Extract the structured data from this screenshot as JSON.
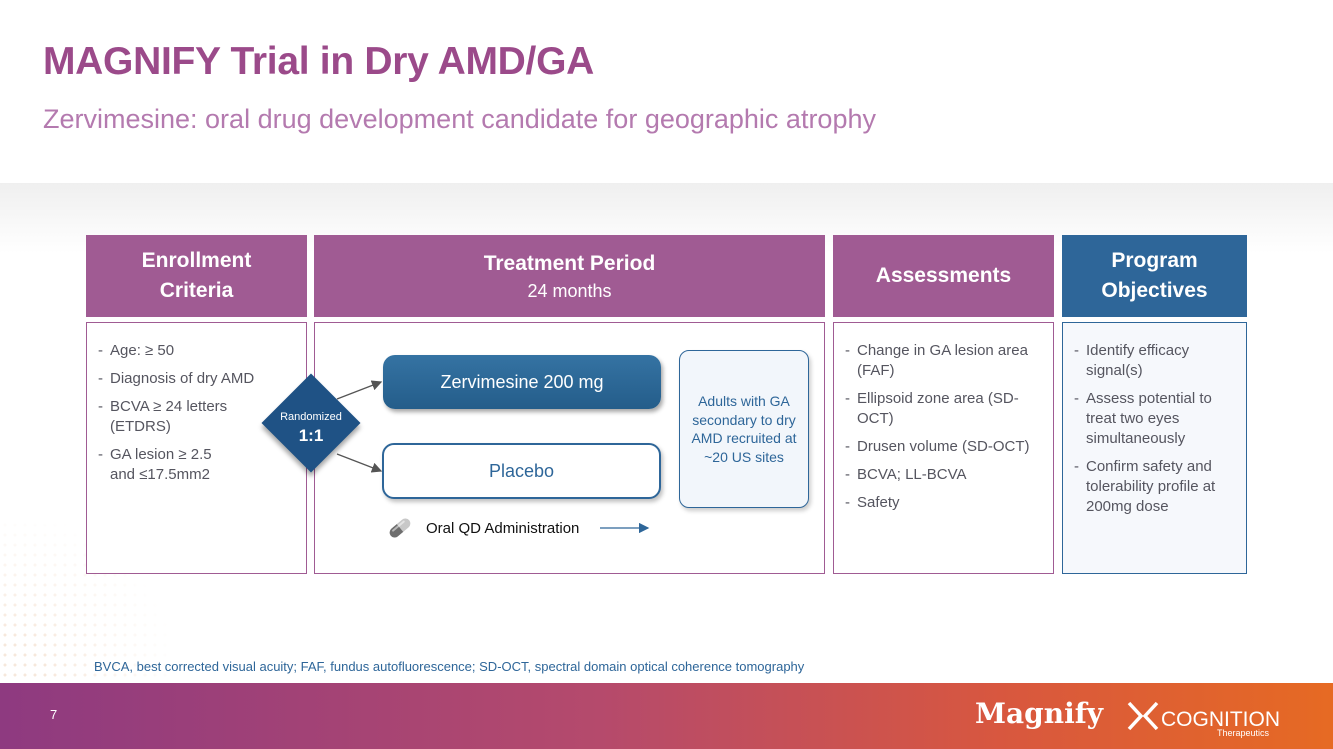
{
  "title": "MAGNIFY Trial in Dry AMD/GA",
  "subtitle": "Zervimesine: oral drug development candidate for geographic atrophy",
  "columns": {
    "enrollment": {
      "header_line1": "Enrollment",
      "header_line2": "Criteria",
      "items": [
        "Age: ≥ 50",
        "Diagnosis of dry AMD",
        "BCVA ≥ 24 letters (ETDRS)",
        "GA lesion ≥ 2.5 and ≤17.5mm2"
      ]
    },
    "treatment": {
      "header": "Treatment Period",
      "header_sub": "24 months",
      "randomized_label": "Randomized",
      "ratio": "1:1",
      "arm1": "Zervimesine 200 mg",
      "arm2": "Placebo",
      "population": "Adults with GA secondary to dry AMD recruited at ~20 US sites",
      "administration": "Oral QD Administration"
    },
    "assessments": {
      "header": "Assessments",
      "items": [
        "Change in GA lesion area (FAF)",
        "Ellipsoid zone area (SD-OCT)",
        "Drusen volume (SD-OCT)",
        "BCVA; LL-BCVA",
        "Safety"
      ]
    },
    "objectives": {
      "header_line1": "Program",
      "header_line2": "Objectives",
      "items": [
        "Identify efficacy signal(s)",
        "Assess potential to treat two eyes simultaneously",
        "Confirm safety and tolerability profile at 200mg dose"
      ]
    }
  },
  "footnote": "BVCA, best corrected visual acuity; FAF, fundus autofluorescence; SD-OCT, spectral domain optical coherence tomography",
  "footer": {
    "page_number": "7",
    "logo_magnify": "Magnify",
    "logo_cognition": "COGNITION",
    "logo_cognition_sub": "Therapeutics"
  },
  "colors": {
    "purple": "#a05b93",
    "blue": "#2e6699",
    "title": "#9b4a8a"
  },
  "icons": [
    "pill-capsule-icon",
    "arrow-right-icon",
    "cognition-x-icon"
  ]
}
